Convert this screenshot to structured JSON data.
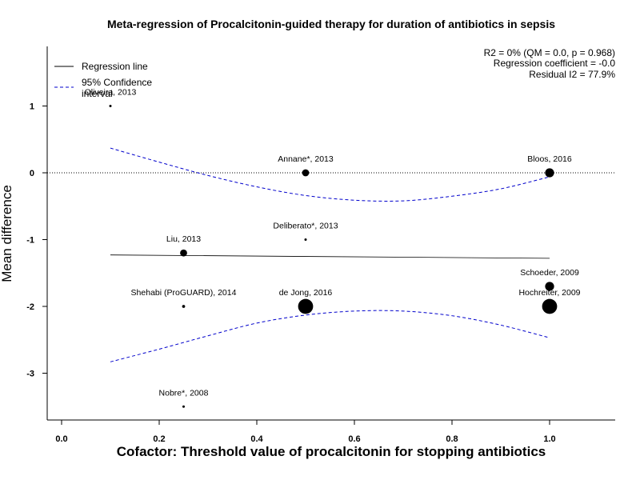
{
  "chart_data": {
    "type": "scatter",
    "title": "Meta-regression of  Procalcitonin-guided therapy for duration of antibiotics in sepsis",
    "xlabel": "Cofactor:  Threshold value of procalcitonin for stopping antibiotics",
    "ylabel": "Mean difference",
    "xlim": [
      0,
      1.13
    ],
    "ylim": [
      -3.7,
      1.85
    ],
    "x_ticks": [
      "0.0",
      "0.2",
      "0.4",
      "0.6",
      "0.8",
      "1.0"
    ],
    "y_ticks": [
      "1",
      "0",
      "-1",
      "-2",
      "-3"
    ],
    "reference_line_y": 0,
    "points": [
      {
        "label": "Oliveira, 2013",
        "x": 0.1,
        "y": 1.0,
        "weight": 1.2
      },
      {
        "label": "Annane*, 2013",
        "x": 0.5,
        "y": 0.0,
        "weight": 3.5
      },
      {
        "label": "Bloos, 2016",
        "x": 1.0,
        "y": 0.0,
        "weight": 4.5
      },
      {
        "label": "Liu, 2013",
        "x": 0.25,
        "y": -1.2,
        "weight": 3.5
      },
      {
        "label": "Deliberato*, 2013",
        "x": 0.5,
        "y": -1.0,
        "weight": 1.0
      },
      {
        "label": "Schoeder, 2009",
        "x": 1.0,
        "y": -1.7,
        "weight": 4.5
      },
      {
        "label": "Shehabi (ProGUARD), 2014",
        "x": 0.25,
        "y": -2.0,
        "weight": 1.5
      },
      {
        "label": "de Jong, 2016",
        "x": 0.5,
        "y": -2.0,
        "weight": 7.5
      },
      {
        "label": "Hochreiter, 2009",
        "x": 1.0,
        "y": -2.0,
        "weight": 7.5
      },
      {
        "label": "Nobre*, 2008",
        "x": 0.25,
        "y": -3.5,
        "weight": 1.2
      }
    ],
    "regression_line": {
      "x": [
        0.1,
        1.0
      ],
      "y": [
        -1.23,
        -1.28
      ]
    },
    "ci_upper": {
      "x": [
        0.1,
        0.2,
        0.3,
        0.4,
        0.5,
        0.6,
        0.7,
        0.8,
        0.9,
        1.0
      ],
      "y": [
        0.37,
        0.16,
        -0.04,
        -0.21,
        -0.34,
        -0.41,
        -0.42,
        -0.35,
        -0.24,
        -0.06
      ]
    },
    "ci_lower": {
      "x": [
        0.1,
        0.2,
        0.3,
        0.4,
        0.5,
        0.6,
        0.7,
        0.8,
        0.9,
        1.0
      ],
      "y": [
        -2.83,
        -2.64,
        -2.44,
        -2.25,
        -2.13,
        -2.07,
        -2.07,
        -2.14,
        -2.28,
        -2.47
      ]
    },
    "legend": [
      {
        "label": "Regression line",
        "style": "solid",
        "color": "#000000"
      },
      {
        "label": "95% Confidence interval",
        "style": "dashed",
        "color": "#0000cc"
      }
    ],
    "stats": [
      "R2 = 0% (QM = 0.0, p = 0.968)",
      "Regression coefficient = -0.0",
      "Residual I2 = 77.9%"
    ]
  }
}
